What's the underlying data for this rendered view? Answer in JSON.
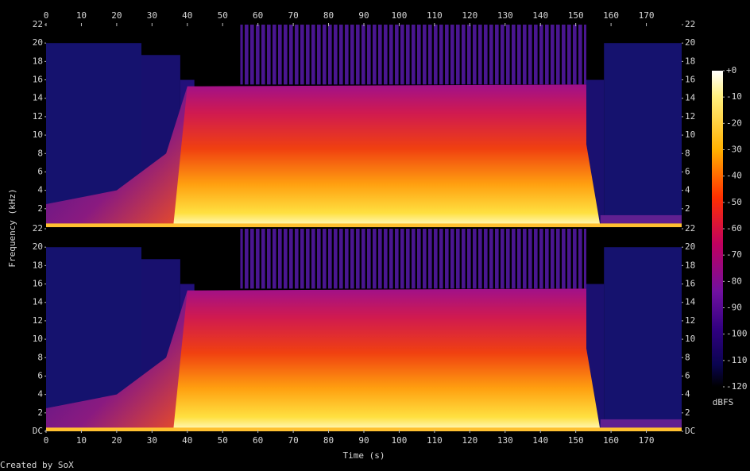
{
  "chart_data": [
    {
      "type": "spectrogram",
      "y_label": "Frequency (kHz)",
      "xlim": [
        0,
        180
      ],
      "xticks": [
        0,
        10,
        20,
        30,
        40,
        50,
        60,
        70,
        80,
        90,
        100,
        110,
        120,
        130,
        140,
        150,
        160,
        170
      ],
      "ylim": [
        0,
        22
      ],
      "yticks": [
        2,
        4,
        6,
        8,
        10,
        12,
        14,
        16,
        18,
        20,
        22
      ],
      "colorbar": {
        "label": "dBFS",
        "lim": [
          -120,
          0
        ],
        "ticks": [
          {
            "value": 0,
            "label": "+0"
          },
          -10,
          -20,
          -30,
          -40,
          -50,
          -60,
          -70,
          -80,
          -90,
          -100,
          -110,
          -120
        ]
      }
    },
    {
      "type": "spectrogram",
      "x_label": "Time (s)",
      "xlim": [
        0,
        180
      ],
      "xticks": [
        0,
        10,
        20,
        30,
        40,
        50,
        60,
        70,
        80,
        90,
        100,
        110,
        120,
        130,
        140,
        150,
        160,
        170
      ],
      "ylim": [
        0,
        22
      ],
      "yticks": [
        {
          "value": 0,
          "label": "DC"
        },
        2,
        4,
        6,
        8,
        10,
        12,
        14,
        16,
        18,
        20,
        22
      ]
    }
  ],
  "footer": "Created by SoX"
}
